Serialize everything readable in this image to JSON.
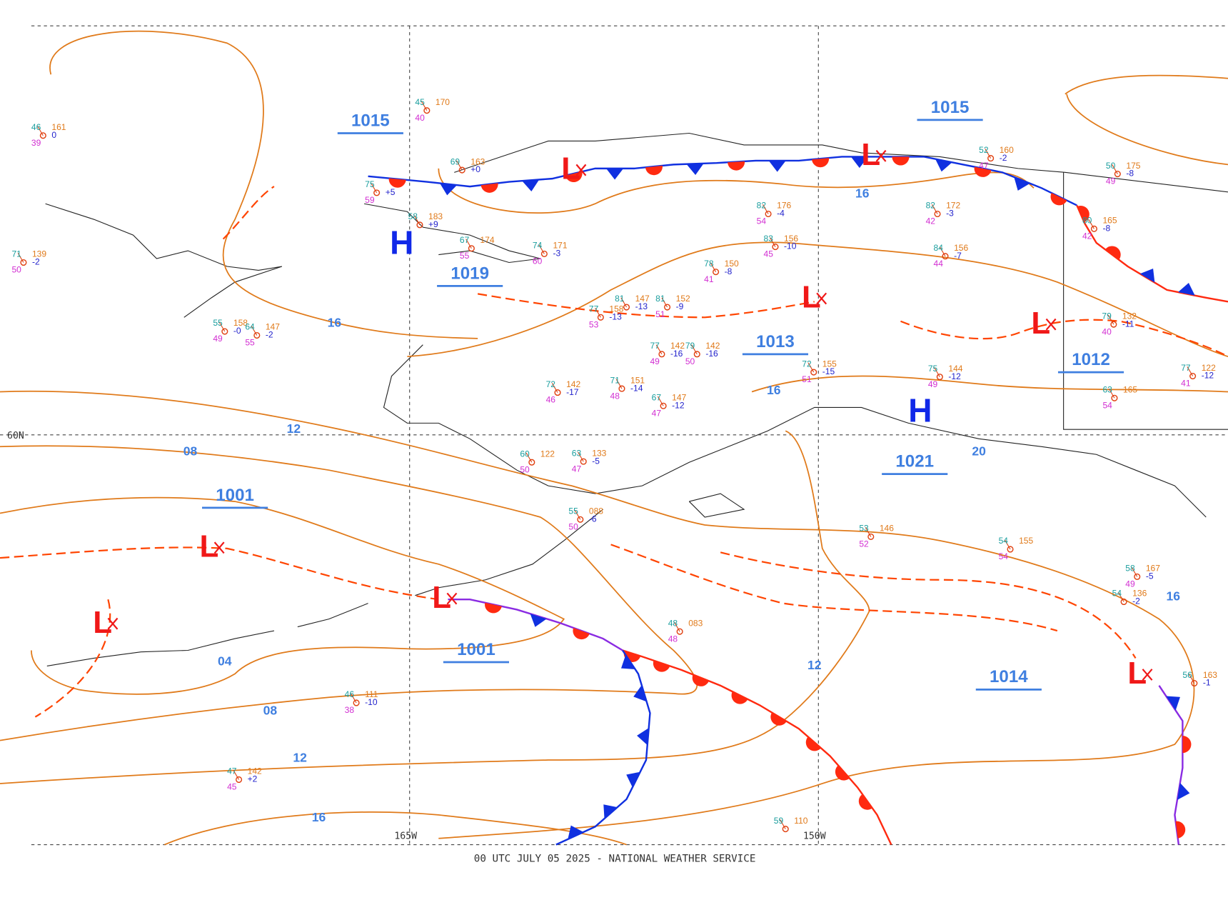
{
  "footer": "00 UTC JULY 05 2025 - NATIONAL WEATHER SERVICE",
  "grid_labels": {
    "lon_west": "165W",
    "lon_east": "150W",
    "lat": "60N"
  },
  "pressure_centers": [
    "1015",
    "1019",
    "1015",
    "1013",
    "1012",
    "1021",
    "1001",
    "1001",
    "1014"
  ],
  "highs": [
    "H",
    "H"
  ],
  "lows": [
    "L",
    "L",
    "L",
    "L",
    "L",
    "L",
    "L",
    "L"
  ],
  "isobar_labels": [
    "16",
    "16",
    "16",
    "12",
    "08",
    "04",
    "08",
    "12",
    "16",
    "12",
    "16",
    "20"
  ],
  "stations": [
    {
      "temp": "46",
      "dew": "39",
      "pressure": "161",
      "change": "0"
    },
    {
      "temp": "45",
      "dew": "40",
      "pressure": "170"
    },
    {
      "temp": "69",
      "pressure": "163",
      "change": "+0"
    },
    {
      "temp": "75",
      "dew": "59",
      "change": "+5"
    },
    {
      "temp": "58",
      "pressure": "183",
      "change": "+9"
    },
    {
      "temp": "67",
      "dew": "55",
      "pressure": "174"
    },
    {
      "temp": "74",
      "dew": "60",
      "pressure": "171",
      "change": "-3"
    },
    {
      "temp": "71",
      "dew": "50",
      "pressure": "139",
      "change": "-2"
    },
    {
      "temp": "55",
      "dew": "49",
      "pressure": "158",
      "change": "-0"
    },
    {
      "temp": "64",
      "dew": "55",
      "pressure": "147",
      "change": "-2"
    },
    {
      "temp": "82",
      "dew": "54",
      "pressure": "176",
      "change": "-4"
    },
    {
      "temp": "82",
      "dew": "42",
      "pressure": "172",
      "change": "-3"
    },
    {
      "temp": "83",
      "dew": "45",
      "pressure": "156",
      "change": "-10"
    },
    {
      "temp": "84",
      "dew": "44",
      "pressure": "156",
      "change": "-7"
    },
    {
      "temp": "78",
      "dew": "41",
      "pressure": "150",
      "change": "-8"
    },
    {
      "temp": "52",
      "dew": "47",
      "pressure": "160",
      "change": "-2"
    },
    {
      "temp": "50",
      "dew": "49",
      "pressure": "175",
      "change": "-8"
    },
    {
      "temp": "80",
      "dew": "42",
      "pressure": "165",
      "change": "-8"
    },
    {
      "temp": "79",
      "dew": "40",
      "pressure": "132",
      "change": "-11"
    },
    {
      "temp": "75",
      "dew": "49",
      "pressure": "144",
      "change": "-12"
    },
    {
      "temp": "72",
      "dew": "51",
      "pressure": "155",
      "change": "-15"
    },
    {
      "temp": "72",
      "dew": "46",
      "pressure": "142",
      "change": "-17"
    },
    {
      "temp": "71",
      "dew": "48",
      "pressure": "151",
      "change": "-14"
    },
    {
      "temp": "67",
      "dew": "47",
      "pressure": "147",
      "change": "-12"
    },
    {
      "temp": "60",
      "dew": "50",
      "pressure": "122"
    },
    {
      "temp": "63",
      "dew": "47",
      "pressure": "133",
      "change": "-5"
    },
    {
      "temp": "55",
      "dew": "50",
      "pressure": "088",
      "change": "-6"
    },
    {
      "temp": "53",
      "dew": "52",
      "pressure": "146"
    },
    {
      "temp": "54",
      "dew": "54",
      "pressure": "155"
    },
    {
      "temp": "58",
      "dew": "49",
      "pressure": "167",
      "change": "-5"
    },
    {
      "temp": "54",
      "pressure": "136",
      "change": "-2"
    },
    {
      "temp": "48",
      "dew": "48",
      "pressure": "083"
    },
    {
      "temp": "46",
      "dew": "38",
      "pressure": "111",
      "change": "-10"
    },
    {
      "temp": "47",
      "dew": "45",
      "pressure": "142",
      "change": "+2"
    },
    {
      "temp": "59",
      "pressure": "110"
    },
    {
      "temp": "56",
      "pressure": "163",
      "change": "-1"
    },
    {
      "temp": "77",
      "dew": "41",
      "pressure": "122",
      "change": "-12"
    },
    {
      "temp": "77",
      "dew": "49",
      "pressure": "142",
      "change": "-16"
    },
    {
      "temp": "79",
      "dew": "50",
      "pressure": "142",
      "change": "-16"
    },
    {
      "temp": "81",
      "pressure": "147",
      "change": "-13"
    },
    {
      "temp": "81",
      "dew": "51",
      "pressure": "152",
      "change": "-9"
    },
    {
      "temp": "77",
      "dew": "53",
      "pressure": "158",
      "change": "-13"
    },
    {
      "temp": "63",
      "dew": "54",
      "pressure": "165"
    }
  ]
}
